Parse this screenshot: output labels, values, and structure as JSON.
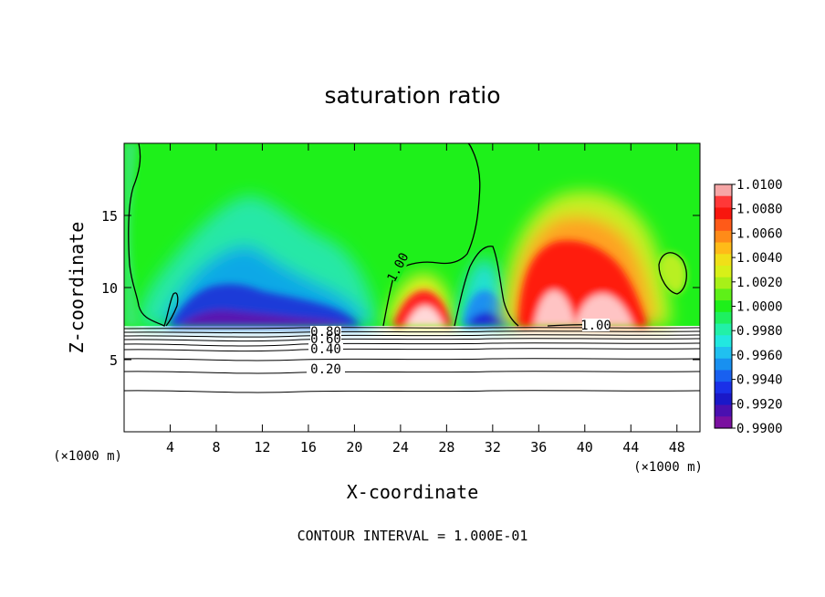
{
  "chart_data": {
    "type": "heatmap",
    "title": "saturation ratio",
    "xlabel": "X-coordinate",
    "ylabel": "Z-coordinate",
    "x_unit": "(×1000 m)",
    "xlim": [
      0,
      50
    ],
    "ylim": [
      0,
      20
    ],
    "x_ticks": [
      4,
      8,
      12,
      16,
      20,
      24,
      28,
      32,
      36,
      40,
      44,
      48
    ],
    "y_ticks": [
      5,
      10,
      15
    ],
    "footer": "CONTOUR INTERVAL = 1.000E-01",
    "colorbar": {
      "labels": [
        "1.0100",
        "1.0080",
        "1.0060",
        "1.0040",
        "1.0020",
        "1.0000",
        "0.9980",
        "0.9960",
        "0.9940",
        "0.9920",
        "0.9900"
      ],
      "min": 0.99,
      "max": 1.01
    },
    "contour_labels": [
      "1.00",
      "1.00",
      "0.80",
      "0.60",
      "0.40",
      "0.20"
    ],
    "regions": [
      {
        "name": "cloud-base-level",
        "z": 7.3
      },
      {
        "name": "subsaturated-band",
        "x_range": [
          5,
          22
        ],
        "z_range": [
          7.3,
          15
        ],
        "min_value": 0.9905
      },
      {
        "name": "supersaturated-cell-1",
        "x_range": [
          22,
          29
        ],
        "z_range": [
          7.3,
          10
        ],
        "max_value": 1.007
      },
      {
        "name": "subsaturated-cell",
        "x_range": [
          29,
          34
        ],
        "z_range": [
          7.3,
          11
        ],
        "min_value": 0.993
      },
      {
        "name": "supersaturated-cell-2",
        "x_range": [
          34,
          46
        ],
        "z_range": [
          7.3,
          16
        ],
        "max_value": 1.0085
      }
    ]
  }
}
